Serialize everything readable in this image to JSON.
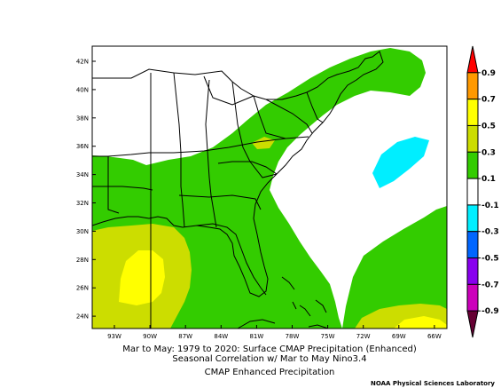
{
  "colors": {
    "c_0_1_0_3": "#33cc00",
    "c_0_3_0_5": "#ccdd00",
    "c_0_5_0_7": "#ffff00",
    "c_0_7_0_9": "#ff9900",
    "c_gt_0_9": "#ff0000",
    "c_neutral": "#ffffff",
    "c_m0_1_m0_3": "#00eeff",
    "c_m0_3_m0_5": "#0066ff",
    "c_m0_5_m0_7": "#8800ee",
    "c_m0_7_m0_9": "#cc00bb",
    "c_lt_m0_9": "#660033",
    "coast": "#000000"
  },
  "map": {
    "lat_labels": [
      "42N",
      "40N",
      "38N",
      "36N",
      "34N",
      "32N",
      "30N",
      "28N",
      "26N",
      "24N"
    ],
    "lon_labels": [
      "93W",
      "90W",
      "87W",
      "84W",
      "81W",
      "78W",
      "75W",
      "72W",
      "69W",
      "66W"
    ]
  },
  "colorbar": {
    "labels": [
      "0.9",
      "0.7",
      "0.5",
      "0.3",
      "0.1",
      "-0.1",
      "-0.3",
      "-0.5",
      "-0.7",
      "-0.9"
    ],
    "segment_colors": [
      "#ff0000",
      "#ff9900",
      "#ffff00",
      "#ccdd00",
      "#33cc00",
      "#ffffff",
      "#00eeff",
      "#0066ff",
      "#8800ee",
      "#cc00bb",
      "#660033"
    ]
  },
  "caption": {
    "line1": "Mar to May: 1979 to 2020: Surface CMAP Precipitation (Enhanced)",
    "line2": "Seasonal Correlation w/ Mar to May Nino3.4",
    "line3": "CMAP Enhanced Precipitation"
  },
  "credit": "NOAA Physical Sciences Laboratory"
}
